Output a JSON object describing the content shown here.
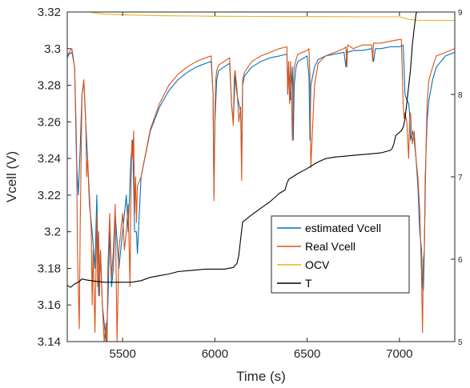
{
  "chart_data": {
    "type": "line",
    "title": "",
    "xlabel": "Time (s)",
    "ylabel": "Vcell (V)",
    "y2label": "",
    "xlim": [
      5200,
      7300
    ],
    "ylim": [
      3.14,
      3.32
    ],
    "y2lim": [
      5,
      9
    ],
    "x_ticks": [
      5500,
      6000,
      6500,
      7000
    ],
    "y_ticks": [
      3.14,
      3.16,
      3.18,
      3.2,
      3.22,
      3.24,
      3.26,
      3.28,
      3.3,
      3.32
    ],
    "y_tick_labels": [
      "3.14",
      "3.16",
      "3.18",
      "3.2",
      "3.22",
      "3.24",
      "3.26",
      "3.28",
      "3.3",
      "3.32"
    ],
    "y2_ticks": [
      5,
      6,
      7,
      8,
      9
    ],
    "legend_position": "center-right",
    "grid": false,
    "series": [
      {
        "name": "estimated Vcell",
        "color": "#0072BD",
        "axis": "left",
        "x": [
          5200,
          5210,
          5225,
          5240,
          5250,
          5260,
          5270,
          5280,
          5290,
          5300,
          5310,
          5320,
          5335,
          5350,
          5360,
          5370,
          5380,
          5390,
          5400,
          5410,
          5420,
          5430,
          5440,
          5450,
          5460,
          5480,
          5500,
          5520,
          5530,
          5545,
          5555,
          5565,
          5575,
          5580,
          5600,
          5650,
          5700,
          5750,
          5800,
          5850,
          5900,
          5950,
          5980,
          5990,
          5995,
          6000,
          6010,
          6020,
          6050,
          6080,
          6090,
          6100,
          6110,
          6120,
          6140,
          6145,
          6150,
          6160,
          6200,
          6250,
          6300,
          6350,
          6390,
          6395,
          6400,
          6410,
          6420,
          6425,
          6430,
          6440,
          6450,
          6500,
          6510,
          6515,
          6520,
          6540,
          6560,
          6600,
          6650,
          6700,
          6710,
          6715,
          6720,
          6750,
          6800,
          6850,
          6860,
          6870,
          6900,
          6950,
          7000,
          7020,
          7025,
          7030,
          7040,
          7050,
          7055,
          7060,
          7070,
          7080,
          7090,
          7100,
          7110,
          7120,
          7125,
          7130,
          7135,
          7140,
          7150,
          7160,
          7180,
          7200,
          7250,
          7300
        ],
        "y": [
          3.295,
          3.297,
          3.298,
          3.29,
          3.24,
          3.22,
          3.245,
          3.275,
          3.282,
          3.26,
          3.24,
          3.215,
          3.2,
          3.18,
          3.22,
          3.165,
          3.19,
          3.16,
          3.15,
          3.14,
          3.16,
          3.2,
          3.17,
          3.18,
          3.21,
          3.18,
          3.2,
          3.22,
          3.2,
          3.24,
          3.25,
          3.2,
          3.2,
          3.188,
          3.23,
          3.255,
          3.268,
          3.277,
          3.283,
          3.287,
          3.29,
          3.292,
          3.293,
          3.275,
          3.22,
          3.26,
          3.283,
          3.288,
          3.29,
          3.292,
          3.27,
          3.26,
          3.285,
          3.275,
          3.265,
          3.235,
          3.28,
          3.285,
          3.29,
          3.293,
          3.295,
          3.296,
          3.297,
          3.275,
          3.29,
          3.272,
          3.29,
          3.25,
          3.28,
          3.29,
          3.293,
          3.296,
          3.285,
          3.25,
          3.28,
          3.29,
          3.294,
          3.296,
          3.297,
          3.298,
          3.29,
          3.299,
          3.298,
          3.299,
          3.299,
          3.3,
          3.293,
          3.3,
          3.3,
          3.301,
          3.301,
          3.302,
          3.29,
          3.275,
          3.272,
          3.27,
          3.265,
          3.25,
          3.255,
          3.25,
          3.24,
          3.225,
          3.2,
          3.19,
          3.17,
          3.168,
          3.19,
          3.23,
          3.26,
          3.272,
          3.283,
          3.29,
          3.296,
          3.298
        ]
      },
      {
        "name": "Real Vcell",
        "color": "#D95319",
        "axis": "left",
        "x": [
          5200,
          5210,
          5225,
          5240,
          5250,
          5255,
          5260,
          5265,
          5270,
          5280,
          5290,
          5300,
          5305,
          5310,
          5320,
          5330,
          5335,
          5340,
          5350,
          5360,
          5365,
          5370,
          5375,
          5380,
          5390,
          5400,
          5410,
          5415,
          5420,
          5430,
          5440,
          5450,
          5460,
          5470,
          5480,
          5490,
          5500,
          5510,
          5520,
          5530,
          5540,
          5545,
          5550,
          5555,
          5560,
          5565,
          5570,
          5575,
          5580,
          5600,
          5650,
          5700,
          5750,
          5800,
          5850,
          5900,
          5950,
          5980,
          5990,
          5995,
          6000,
          6005,
          6010,
          6020,
          6050,
          6080,
          6090,
          6100,
          6105,
          6110,
          6120,
          6130,
          6140,
          6145,
          6150,
          6160,
          6200,
          6250,
          6300,
          6350,
          6390,
          6395,
          6400,
          6405,
          6410,
          6420,
          6425,
          6430,
          6440,
          6450,
          6500,
          6510,
          6515,
          6520,
          6540,
          6560,
          6600,
          6650,
          6700,
          6710,
          6715,
          6720,
          6750,
          6800,
          6850,
          6855,
          6860,
          6870,
          6900,
          6950,
          7000,
          7010,
          7015,
          7020,
          7025,
          7030,
          7040,
          7050,
          7055,
          7060,
          7070,
          7080,
          7090,
          7100,
          7110,
          7120,
          7125,
          7128,
          7130,
          7135,
          7140,
          7145,
          7150,
          7160,
          7180,
          7200,
          7250,
          7300
        ],
        "y": [
          3.296,
          3.298,
          3.3,
          3.29,
          3.25,
          3.19,
          3.17,
          3.147,
          3.2,
          3.275,
          3.283,
          3.262,
          3.23,
          3.24,
          3.22,
          3.2,
          3.16,
          3.19,
          3.145,
          3.21,
          3.17,
          3.2,
          3.165,
          3.19,
          3.16,
          3.14,
          3.15,
          3.13,
          3.18,
          3.21,
          3.175,
          3.19,
          3.215,
          3.14,
          3.19,
          3.2,
          3.21,
          3.19,
          3.2,
          3.215,
          3.17,
          3.22,
          3.25,
          3.24,
          3.255,
          3.21,
          3.23,
          3.205,
          3.225,
          3.23,
          3.256,
          3.27,
          3.28,
          3.286,
          3.29,
          3.293,
          3.295,
          3.296,
          3.275,
          3.217,
          3.265,
          3.283,
          3.288,
          3.291,
          3.293,
          3.295,
          3.27,
          3.258,
          3.285,
          3.288,
          3.278,
          3.26,
          3.268,
          3.228,
          3.283,
          3.287,
          3.293,
          3.296,
          3.298,
          3.3,
          3.301,
          3.276,
          3.293,
          3.27,
          3.293,
          3.25,
          3.28,
          3.29,
          3.294,
          3.297,
          3.299,
          3.3,
          3.285,
          3.235,
          3.28,
          3.292,
          3.296,
          3.298,
          3.3,
          3.301,
          3.29,
          3.302,
          3.3,
          3.302,
          3.302,
          3.293,
          3.303,
          3.303,
          3.303,
          3.304,
          3.305,
          3.305,
          3.29,
          3.27,
          3.262,
          3.265,
          3.26,
          3.24,
          3.26,
          3.265,
          3.248,
          3.255,
          3.24,
          3.23,
          3.212,
          3.175,
          3.145,
          3.172,
          3.185,
          3.19,
          3.22,
          3.25,
          3.27,
          3.283,
          3.29,
          3.296,
          3.298,
          3.3
        ]
      },
      {
        "name": "OCV",
        "color": "#EDB120",
        "axis": "left",
        "x": [
          5200,
          5300,
          5350,
          5400,
          5500,
          5600,
          5700,
          5800,
          5900,
          6000,
          6200,
          6400,
          6600,
          6800,
          7000,
          7050,
          7100,
          7200,
          7300
        ],
        "y": [
          3.323,
          3.3205,
          3.3195,
          3.3188,
          3.3185,
          3.3182,
          3.318,
          3.3179,
          3.3178,
          3.3177,
          3.3176,
          3.3175,
          3.3175,
          3.3174,
          3.3174,
          3.316,
          3.3155,
          3.3154,
          3.3154
        ]
      },
      {
        "name": "T",
        "color": "#000000",
        "axis": "right",
        "x": [
          5200,
          5220,
          5240,
          5260,
          5280,
          5300,
          5330,
          5360,
          5400,
          5450,
          5500,
          5550,
          5600,
          5650,
          5700,
          5750,
          5800,
          5850,
          5900,
          5950,
          6000,
          6050,
          6100,
          6120,
          6130,
          6140,
          6150,
          6200,
          6250,
          6300,
          6350,
          6380,
          6390,
          6400,
          6450,
          6500,
          6550,
          6600,
          6650,
          6700,
          6750,
          6800,
          6850,
          6900,
          6950,
          6960,
          6970,
          6980,
          6990,
          7000,
          7010,
          7020,
          7030,
          7040,
          7050,
          7060,
          7070,
          7080,
          7090,
          7100
        ],
        "y": [
          5.68,
          5.66,
          5.7,
          5.72,
          5.76,
          5.75,
          5.74,
          5.73,
          5.72,
          5.72,
          5.72,
          5.72,
          5.74,
          5.78,
          5.8,
          5.82,
          5.85,
          5.86,
          5.87,
          5.88,
          5.88,
          5.88,
          5.9,
          5.95,
          6.05,
          6.25,
          6.45,
          6.54,
          6.62,
          6.7,
          6.8,
          6.84,
          6.92,
          6.97,
          7.04,
          7.1,
          7.17,
          7.22,
          7.24,
          7.25,
          7.26,
          7.27,
          7.28,
          7.29,
          7.32,
          7.34,
          7.4,
          7.5,
          7.52,
          7.54,
          7.56,
          7.6,
          7.7,
          7.9,
          8.1,
          8.3,
          8.6,
          8.8,
          8.98,
          9.02
        ]
      }
    ]
  }
}
